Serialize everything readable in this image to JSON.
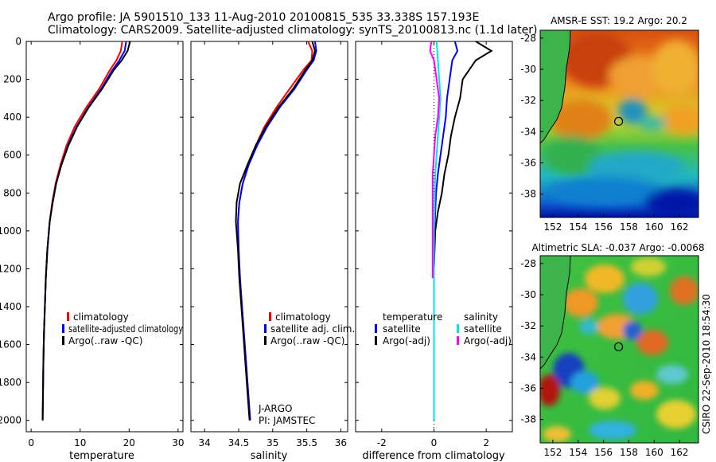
{
  "header": {
    "title_line1": "Argo profile: JA 5901510_133 11-Aug-2010 20100815_535 33.338S 157.193E",
    "title_line2": "Climatology: CARS2009. Satellite-adjusted climatology: synTS_20100813.nc (1.1d later)"
  },
  "credit": "CSIRO 22-Sep-2010 18:54:30",
  "chart_data": [
    {
      "type": "line",
      "xlabel": "temperature",
      "ylabel": "",
      "xlim": [
        -1,
        31
      ],
      "ylim": [
        2060,
        0
      ],
      "xticks": [
        "0",
        "10",
        "20",
        "30"
      ],
      "yticks": [
        "0",
        "200",
        "400",
        "600",
        "800",
        "1000",
        "1200",
        "1400",
        "1600",
        "1800",
        "2000"
      ],
      "xtick_values": [
        0,
        10,
        20,
        30
      ],
      "ytick_values": [
        0,
        200,
        400,
        600,
        800,
        1000,
        1200,
        1400,
        1600,
        1800,
        2000
      ],
      "legend": [
        "climatology",
        "satellite-adjusted climatology",
        "Argo(..raw -QC)"
      ],
      "series": [
        {
          "name": "climatology",
          "color": "#ff0000",
          "x": [
            18.6,
            18.3,
            17.4,
            16.1,
            13.9,
            11.2,
            8.9,
            7.2,
            6.0,
            5.0,
            4.3,
            3.8,
            3.3,
            3.0,
            2.8,
            2.6,
            2.5,
            2.45,
            2.4,
            2.35
          ],
          "y": [
            0,
            50,
            100,
            150,
            250,
            350,
            450,
            550,
            650,
            750,
            850,
            950,
            1100,
            1250,
            1400,
            1550,
            1700,
            1800,
            1900,
            2000
          ]
        },
        {
          "name": "satellite-adjusted climatology",
          "color": "#0000ff",
          "x": [
            19.4,
            19.1,
            18.0,
            16.6,
            14.3,
            11.6,
            9.3,
            7.5,
            6.2,
            5.1,
            4.4,
            3.8,
            3.3,
            3.0,
            2.8,
            2.6,
            2.5,
            2.45,
            2.4,
            2.35
          ],
          "y": [
            0,
            50,
            100,
            150,
            250,
            350,
            450,
            550,
            650,
            750,
            850,
            950,
            1100,
            1250,
            1400,
            1550,
            1700,
            1800,
            1900,
            2000
          ]
        },
        {
          "name": "Argo(..raw -QC)",
          "color": "#000000",
          "x": [
            20.2,
            19.7,
            18.5,
            16.9,
            14.5,
            11.7,
            9.4,
            7.6,
            6.2,
            5.1,
            4.4,
            3.8,
            3.3,
            3.0,
            2.8,
            2.6,
            2.5,
            2.45,
            2.4,
            2.35
          ],
          "y": [
            0,
            50,
            100,
            150,
            250,
            350,
            450,
            550,
            650,
            750,
            850,
            950,
            1100,
            1250,
            1400,
            1550,
            1700,
            1800,
            1900,
            2000
          ]
        }
      ]
    },
    {
      "type": "line",
      "xlabel": "salinity",
      "ylabel": "",
      "xlim": [
        33.8,
        36.1
      ],
      "ylim": [
        2060,
        0
      ],
      "xticks": [
        "34",
        "34.5",
        "35",
        "35.5",
        "36"
      ],
      "xtick_values": [
        34,
        34.5,
        35,
        35.5,
        36
      ],
      "legend": [
        "climatology",
        "satellite adj. clim.",
        "Argo(..raw -QC)"
      ],
      "annotations": [
        "J-ARGO",
        "PI: JAMSTEC"
      ],
      "series": [
        {
          "name": "climatology",
          "color": "#ff0000",
          "x": [
            35.52,
            35.58,
            35.57,
            35.45,
            35.25,
            35.05,
            34.88,
            34.75,
            34.64,
            34.56,
            34.51,
            34.49,
            34.5,
            34.52,
            34.55,
            34.58,
            34.61,
            34.63,
            34.65,
            34.67
          ],
          "y": [
            0,
            50,
            100,
            150,
            250,
            350,
            450,
            550,
            650,
            750,
            850,
            950,
            1100,
            1250,
            1400,
            1550,
            1700,
            1800,
            1900,
            2000
          ]
        },
        {
          "name": "satellite adj. clim.",
          "color": "#0000ff",
          "x": [
            35.62,
            35.64,
            35.6,
            35.5,
            35.32,
            35.1,
            34.92,
            34.77,
            34.65,
            34.56,
            34.51,
            34.49,
            34.5,
            34.52,
            34.55,
            34.58,
            34.61,
            34.63,
            34.65,
            34.67
          ],
          "y": [
            0,
            50,
            100,
            150,
            250,
            350,
            450,
            550,
            650,
            750,
            850,
            950,
            1100,
            1250,
            1400,
            1550,
            1700,
            1800,
            1900,
            2000
          ]
        },
        {
          "name": "Argo(..raw -QC)",
          "color": "#000000",
          "x": [
            35.58,
            35.62,
            35.58,
            35.48,
            35.3,
            35.08,
            34.9,
            34.75,
            34.63,
            34.52,
            34.47,
            34.46,
            34.49,
            34.51,
            34.54,
            34.57,
            34.6,
            34.62,
            34.64,
            34.66
          ],
          "y": [
            0,
            50,
            100,
            150,
            250,
            350,
            450,
            550,
            650,
            750,
            850,
            950,
            1100,
            1250,
            1400,
            1550,
            1700,
            1800,
            1900,
            2000
          ]
        }
      ]
    },
    {
      "type": "line",
      "xlabel": "difference from climatology",
      "ylabel": "",
      "xlim": [
        -3,
        3
      ],
      "ylim": [
        2060,
        0
      ],
      "xticks": [
        "-2",
        "0",
        "2"
      ],
      "xtick_values": [
        -2,
        0,
        2
      ],
      "legend_temperature_title": "temperature",
      "legend_salinity_title": "salinity",
      "legend": [
        "satellite",
        "Argo(-adj)",
        "satellite",
        "Argo(-adj)"
      ],
      "series": [
        {
          "name": "temperature satellite",
          "color": "#0000ff",
          "x": [
            0.8,
            0.9,
            0.7,
            0.6,
            0.5,
            0.45,
            0.35,
            0.25,
            0.15,
            0.08,
            0.05,
            0.02,
            0.0,
            0.0,
            0.0,
            0.0
          ],
          "y": [
            0,
            50,
            100,
            200,
            300,
            400,
            500,
            600,
            700,
            800,
            900,
            1000,
            1200,
            1500,
            1800,
            2000
          ]
        },
        {
          "name": "temperature Argo(-adj)",
          "color": "#000000",
          "x": [
            1.6,
            2.2,
            1.6,
            1.1,
            1.0,
            0.8,
            0.65,
            0.55,
            0.4,
            0.3,
            0.15,
            0.05,
            0.0,
            0.0,
            0.0,
            0.0
          ],
          "y": [
            0,
            50,
            100,
            200,
            300,
            400,
            500,
            600,
            700,
            800,
            900,
            1000,
            1200,
            1500,
            1800,
            2000
          ]
        },
        {
          "name": "salinity satellite",
          "color": "#00e5e5",
          "x": [
            0.1,
            0.15,
            0.2,
            0.25,
            0.2,
            0.15,
            0.1,
            0.05,
            0.03,
            0.02,
            0.0,
            0.0,
            0.0,
            0.0
          ],
          "y": [
            0,
            100,
            200,
            300,
            400,
            500,
            600,
            700,
            800,
            900,
            1000,
            1200,
            1500,
            2000
          ]
        },
        {
          "name": "salinity Argo(-adj)",
          "color": "#ff00ff",
          "x": [
            -0.1,
            -0.15,
            0.0,
            0.1,
            0.2,
            0.15,
            0.05,
            0.0,
            -0.05,
            -0.05,
            -0.05,
            -0.05
          ],
          "y": [
            0,
            50,
            100,
            200,
            300,
            400,
            500,
            600,
            700,
            900,
            1100,
            1250
          ]
        }
      ]
    },
    {
      "type": "heatmap",
      "title": "AMSR-E SST: 19.2 Argo: 20.2",
      "xticks": [
        "152",
        "154",
        "156",
        "158",
        "160",
        "162"
      ],
      "yticks": [
        "-28",
        "-30",
        "-32",
        "-34",
        "-36",
        "-38"
      ],
      "xtick_values": [
        152,
        154,
        156,
        158,
        160,
        162
      ],
      "ytick_values": [
        -28,
        -30,
        -32,
        -34,
        -36,
        -38
      ],
      "xlim": [
        151.0,
        163.5
      ],
      "ylim": [
        -39.5,
        -27.5
      ],
      "profile_location": [
        157.193,
        -33.338
      ]
    },
    {
      "type": "heatmap",
      "title": "Altimetric SLA: -0.037 Argo: -0.0068",
      "xticks": [
        "152",
        "154",
        "156",
        "158",
        "160",
        "162"
      ],
      "yticks": [
        "-28",
        "-30",
        "-32",
        "-34",
        "-36",
        "-38"
      ],
      "xtick_values": [
        152,
        154,
        156,
        158,
        160,
        162
      ],
      "ytick_values": [
        -28,
        -30,
        -32,
        -34,
        -36,
        -38
      ],
      "xlim": [
        151.0,
        163.5
      ],
      "ylim": [
        -39.5,
        -27.5
      ],
      "profile_location": [
        157.193,
        -33.338
      ]
    }
  ]
}
